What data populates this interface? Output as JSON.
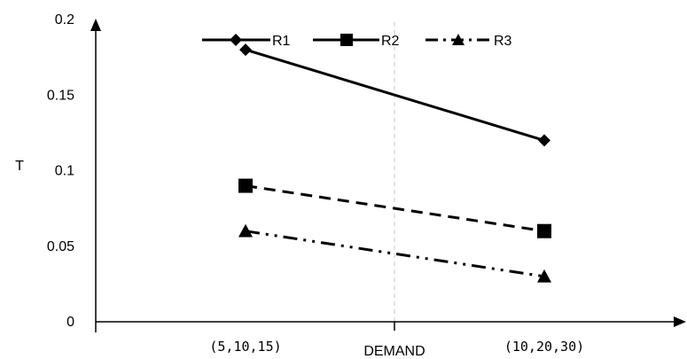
{
  "chart_data": {
    "type": "line",
    "title": "",
    "xlabel": "DEMAND",
    "ylabel": "T",
    "categories": [
      "(5,10,15)",
      "(10,20,30)"
    ],
    "ylim": [
      0,
      0.2
    ],
    "yticks": [
      "0",
      "0.05",
      "0.1",
      "0.15",
      "0.2"
    ],
    "grid": false,
    "legend": "top",
    "series": [
      {
        "name": "R1",
        "values": [
          0.18,
          0.12
        ],
        "line": "solid",
        "marker": "diamond",
        "color": "#000000"
      },
      {
        "name": "R2",
        "values": [
          0.09,
          0.06
        ],
        "line": "dashed",
        "marker": "square",
        "color": "#000000"
      },
      {
        "name": "R3",
        "values": [
          0.06,
          0.03
        ],
        "line": "dash-dot-dot",
        "marker": "triangle",
        "color": "#000000"
      }
    ]
  }
}
